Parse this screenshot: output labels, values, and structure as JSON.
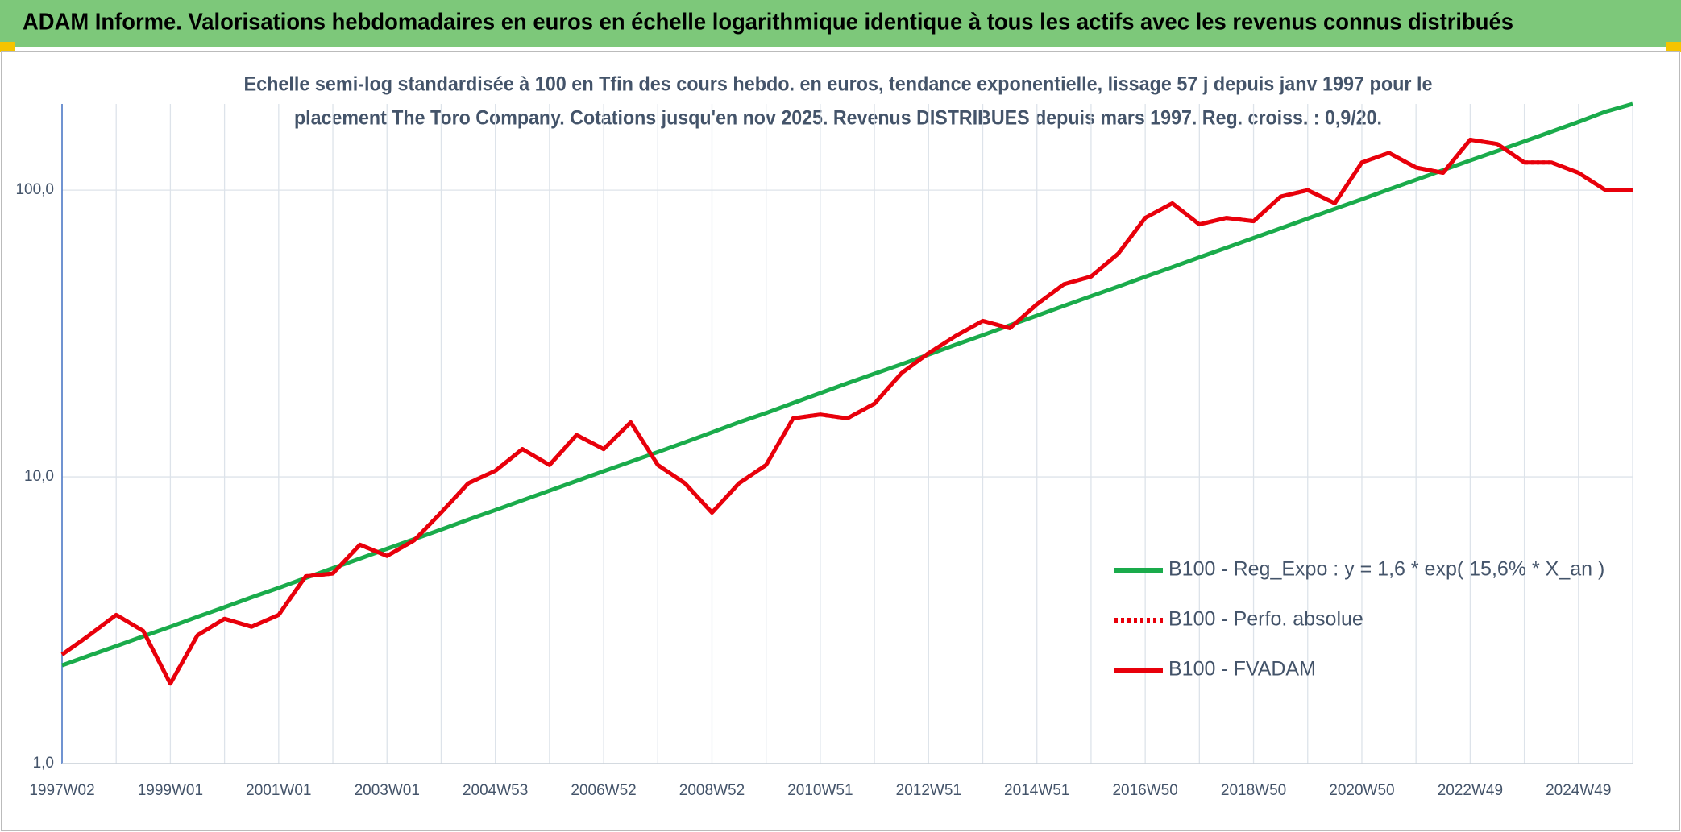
{
  "header": {
    "title": "ADAM Informe. Valorisations hebdomadaires en euros en échelle logarithmique identique à tous les actifs avec les revenus connus distribués"
  },
  "chart_data": {
    "type": "line",
    "subtitle": [
      "Echelle semi-log standardisée à 100 en Tfin des cours hebdo. en euros, tendance exponentielle, lissage 57 j depuis janv 1997 pour le",
      "placement The Toro Company. Cotations jusqu'en nov 2025. Revenus DISTRIBUES depuis mars 1997. Reg. croiss. : 0,9/20."
    ],
    "categories": [
      "1997W02",
      null,
      null,
      null,
      "1999W01",
      null,
      null,
      null,
      "2001W01",
      null,
      null,
      null,
      "2003W01",
      null,
      null,
      null,
      "2004W53",
      null,
      null,
      null,
      "2006W52",
      null,
      null,
      null,
      "2008W52",
      null,
      null,
      null,
      "2010W51",
      null,
      null,
      null,
      "2012W51",
      null,
      null,
      null,
      "2014W51",
      null,
      null,
      null,
      "2016W50",
      null,
      null,
      null,
      "2018W50",
      null,
      null,
      null,
      "2020W50",
      null,
      null,
      null,
      "2022W49",
      null,
      null,
      null,
      "2024W49",
      null,
      null
    ],
    "series": [
      {
        "name": "B100 - Reg_Expo : y = 1,6 * exp( 15,6% *  X_an )",
        "color": "#1aab4b",
        "dash": "solid",
        "values": [
          2.2,
          2.38,
          2.57,
          2.78,
          3.0,
          3.25,
          3.51,
          3.8,
          4.1,
          4.44,
          4.8,
          5.19,
          5.61,
          6.06,
          6.55,
          7.09,
          7.66,
          8.28,
          8.95,
          9.68,
          10.47,
          11.3,
          12.2,
          13.2,
          14.3,
          15.5,
          16.7,
          18.1,
          19.6,
          21.2,
          22.9,
          24.7,
          26.7,
          28.9,
          31.2,
          33.8,
          36.5,
          39.5,
          42.7,
          46.1,
          49.9,
          53.9,
          58.3,
          63.0,
          68.1,
          73.6,
          79.6,
          86.1,
          93.0,
          100.6,
          108.7,
          117.5,
          127,
          137,
          148,
          160,
          173,
          188,
          200
        ]
      },
      {
        "name": "B100 - Perfo. absolue",
        "color": "#e8000b",
        "dash": "dotted",
        "values": [
          2.4,
          2.8,
          3.3,
          2.9,
          1.9,
          2.8,
          3.2,
          3.0,
          3.3,
          4.5,
          4.6,
          5.8,
          5.3,
          6.0,
          7.5,
          9.5,
          10.5,
          12.5,
          11,
          14,
          12.5,
          15.5,
          11,
          9.5,
          7.5,
          9.5,
          11,
          16,
          16.5,
          16,
          18,
          23,
          27,
          31,
          35,
          33,
          40,
          47,
          50,
          60,
          80,
          90,
          76,
          80,
          78,
          95,
          100,
          90,
          125,
          135,
          120,
          115,
          150,
          145,
          125,
          125,
          115,
          100,
          100
        ]
      },
      {
        "name": "B100 - FVADAM",
        "color": "#e8000b",
        "dash": "solid",
        "values": [
          2.4,
          2.8,
          3.3,
          2.9,
          1.9,
          2.8,
          3.2,
          3.0,
          3.3,
          4.5,
          4.6,
          5.8,
          5.3,
          6.0,
          7.5,
          9.5,
          10.5,
          12.5,
          11,
          14,
          12.5,
          15.5,
          11,
          9.5,
          7.5,
          9.5,
          11,
          16,
          16.5,
          16,
          18,
          23,
          27,
          31,
          35,
          33,
          40,
          47,
          50,
          60,
          80,
          90,
          76,
          80,
          78,
          95,
          100,
          90,
          125,
          135,
          120,
          115,
          150,
          145,
          125,
          125,
          115,
          100,
          100
        ]
      }
    ],
    "ylim": [
      1,
      200
    ],
    "log_y": true,
    "yticks": [
      {
        "value": 1,
        "label": "1,0"
      },
      {
        "value": 10,
        "label": "10,0"
      },
      {
        "value": 100,
        "label": "100,0"
      }
    ],
    "grid": true
  }
}
